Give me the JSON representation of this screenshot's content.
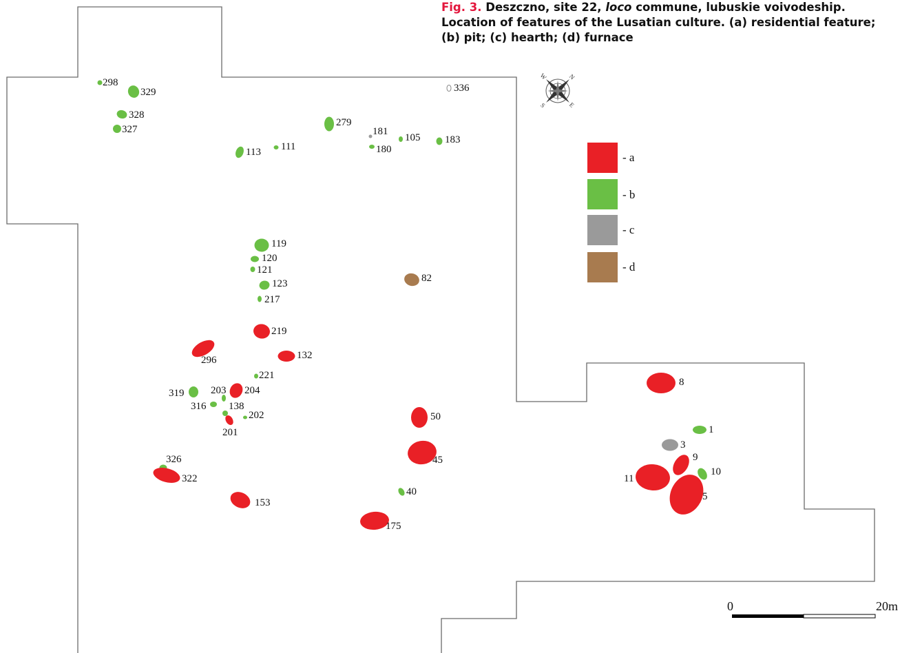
{
  "caption": {
    "fig_label": "Fig. 3.",
    "text_before_italic": "Deszczno, site 22,",
    "italic": "loco",
    "text_after_italic": "commune, lubuskie voivodeship. Location of features of the Lusatian culture. (a) residential feature; (b) pit; (c) hearth; (d) furnace"
  },
  "colors": {
    "a": "#e92026",
    "b": "#6abf45",
    "c": "#9a9a9a",
    "d": "#a87b4f"
  },
  "legend": [
    {
      "key": "a",
      "label": "- a"
    },
    {
      "key": "b",
      "label": "- b"
    },
    {
      "key": "c",
      "label": "- c"
    },
    {
      "key": "d",
      "label": "- d"
    }
  ],
  "compass": {
    "n": "N",
    "e": "E",
    "s": "S",
    "w": "W"
  },
  "scale": {
    "start": "0",
    "end": "20m"
  },
  "features": [
    {
      "id": "298",
      "type": "b"
    },
    {
      "id": "329",
      "type": "b"
    },
    {
      "id": "328",
      "type": "b"
    },
    {
      "id": "327",
      "type": "b"
    },
    {
      "id": "113",
      "type": "b"
    },
    {
      "id": "111",
      "type": "b"
    },
    {
      "id": "279",
      "type": "b"
    },
    {
      "id": "181",
      "type": "c"
    },
    {
      "id": "180",
      "type": "b"
    },
    {
      "id": "105",
      "type": "b"
    },
    {
      "id": "183",
      "type": "b"
    },
    {
      "id": "336",
      "type": "none"
    },
    {
      "id": "119",
      "type": "b"
    },
    {
      "id": "120",
      "type": "b"
    },
    {
      "id": "121",
      "type": "b"
    },
    {
      "id": "123",
      "type": "b"
    },
    {
      "id": "217",
      "type": "b"
    },
    {
      "id": "82",
      "type": "d"
    },
    {
      "id": "219",
      "type": "a"
    },
    {
      "id": "296",
      "type": "a"
    },
    {
      "id": "132",
      "type": "a"
    },
    {
      "id": "221",
      "type": "b"
    },
    {
      "id": "319",
      "type": "b"
    },
    {
      "id": "203",
      "type": "b"
    },
    {
      "id": "204",
      "type": "a"
    },
    {
      "id": "316",
      "type": "b"
    },
    {
      "id": "138",
      "type": "b"
    },
    {
      "id": "202",
      "type": "b"
    },
    {
      "id": "201",
      "type": "a"
    },
    {
      "id": "50",
      "type": "a"
    },
    {
      "id": "45",
      "type": "a"
    },
    {
      "id": "326",
      "type": "b"
    },
    {
      "id": "322",
      "type": "a"
    },
    {
      "id": "153",
      "type": "a"
    },
    {
      "id": "40",
      "type": "b"
    },
    {
      "id": "175",
      "type": "a"
    },
    {
      "id": "8",
      "type": "a"
    },
    {
      "id": "1",
      "type": "b"
    },
    {
      "id": "3",
      "type": "c"
    },
    {
      "id": "9",
      "type": "a"
    },
    {
      "id": "10",
      "type": "b"
    },
    {
      "id": "11",
      "type": "a"
    },
    {
      "id": "5",
      "type": "a"
    }
  ]
}
